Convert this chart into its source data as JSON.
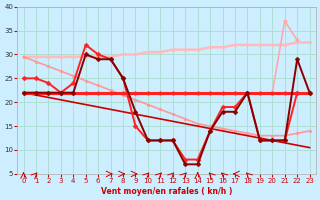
{
  "xlabel": "Vent moyen/en rafales ( kn/h )",
  "xlim": [
    -0.5,
    23.5
  ],
  "ylim": [
    5,
    40
  ],
  "yticks": [
    5,
    10,
    15,
    20,
    25,
    30,
    35,
    40
  ],
  "xticks": [
    0,
    1,
    2,
    3,
    4,
    5,
    6,
    7,
    8,
    9,
    10,
    11,
    12,
    13,
    14,
    15,
    16,
    17,
    18,
    19,
    20,
    21,
    22,
    23
  ],
  "bg_color": "#cceeff",
  "grid_color": "#aaddcc",
  "series": [
    {
      "x": [
        0,
        1,
        2,
        3,
        4,
        5,
        6,
        7,
        8,
        9,
        10,
        11,
        12,
        13,
        14,
        15,
        16,
        17,
        18,
        19,
        20,
        21,
        22,
        23
      ],
      "y": [
        29.5,
        29.5,
        29.5,
        29.5,
        29.5,
        29.5,
        29.5,
        29.5,
        30,
        30,
        30.5,
        30.5,
        31,
        31,
        31,
        31.5,
        31.5,
        32,
        32,
        32,
        32,
        32,
        32.5,
        32.5
      ],
      "color": "#ffbbbb",
      "lw": 1.8,
      "marker": "o",
      "ms": 2.0,
      "zorder": 2
    },
    {
      "x": [
        0,
        1,
        2,
        3,
        4,
        5,
        6,
        7,
        8,
        9,
        10,
        11,
        12,
        13,
        14,
        15,
        16,
        17,
        18,
        19,
        20,
        21,
        22,
        23
      ],
      "y": [
        29.5,
        28.5,
        27.5,
        26.5,
        25.5,
        24.5,
        23.5,
        22.5,
        21.5,
        20.5,
        19.5,
        18.5,
        17.5,
        16.5,
        15.5,
        15,
        14.5,
        14,
        13.5,
        13,
        13,
        13,
        13.5,
        14
      ],
      "color": "#ff9999",
      "lw": 1.2,
      "marker": "o",
      "ms": 2.0,
      "zorder": 2
    },
    {
      "x": [
        0,
        1,
        2,
        3,
        4,
        5,
        6,
        7,
        8,
        9,
        10,
        11,
        12,
        13,
        14,
        15,
        16,
        17,
        18,
        19,
        20,
        21,
        22,
        23
      ],
      "y": [
        22,
        22,
        22,
        22,
        22,
        22,
        22,
        22,
        22,
        22,
        22,
        22,
        22,
        22,
        22,
        22,
        22,
        22,
        22,
        22,
        22,
        22,
        22,
        22
      ],
      "color": "#ff2222",
      "lw": 2.2,
      "marker": "o",
      "ms": 2.5,
      "zorder": 4
    },
    {
      "x": [
        0,
        1,
        2,
        3,
        4,
        5,
        6,
        7,
        8,
        9,
        10,
        11,
        12,
        13,
        14,
        15,
        16,
        17,
        18,
        19,
        20,
        21,
        22,
        23
      ],
      "y": [
        22,
        21.5,
        21,
        20.5,
        20,
        19.5,
        19,
        18.5,
        18,
        17.5,
        17,
        16.5,
        16,
        15.5,
        15,
        14.5,
        14,
        13.5,
        13,
        12.5,
        12,
        11.5,
        11,
        10.5
      ],
      "color": "#cc0000",
      "lw": 1.2,
      "marker": null,
      "ms": 0,
      "zorder": 2
    },
    {
      "x": [
        0,
        1,
        2,
        3,
        4,
        5,
        6,
        7,
        8,
        9,
        10,
        11,
        12,
        13,
        14,
        15,
        16,
        17,
        18,
        19,
        20,
        21,
        22
      ],
      "y": [
        25,
        25,
        24,
        22,
        24,
        32,
        30,
        29,
        25,
        15,
        12,
        12,
        12,
        8,
        8,
        14,
        19,
        19,
        22,
        12,
        12,
        12,
        22
      ],
      "color": "#ff2222",
      "lw": 1.4,
      "marker": "D",
      "ms": 2.5,
      "zorder": 5
    },
    {
      "x": [
        0,
        1,
        2,
        3,
        4,
        5,
        6,
        7,
        8,
        9,
        10,
        11,
        12,
        13,
        14,
        15,
        16,
        17,
        18,
        19,
        20,
        21,
        22,
        23
      ],
      "y": [
        22,
        22,
        22,
        22,
        22,
        30,
        29,
        29,
        25,
        18,
        12,
        12,
        12,
        7,
        7,
        14,
        18,
        18,
        22,
        12,
        12,
        12,
        29,
        22
      ],
      "color": "#880000",
      "lw": 1.4,
      "marker": "D",
      "ms": 2.5,
      "zorder": 5
    },
    {
      "x": [
        19,
        20,
        21,
        22,
        23
      ],
      "y": [
        22,
        22,
        37,
        33,
        null
      ],
      "color": "#ffaaaa",
      "lw": 1.2,
      "marker": "o",
      "ms": 2.5,
      "zorder": 3
    }
  ],
  "wind_angles": [
    0,
    45,
    135,
    135,
    135,
    135,
    135,
    90,
    90,
    90,
    45,
    45,
    45,
    45,
    0,
    315,
    315,
    270,
    315,
    225,
    225,
    180,
    180,
    135
  ]
}
